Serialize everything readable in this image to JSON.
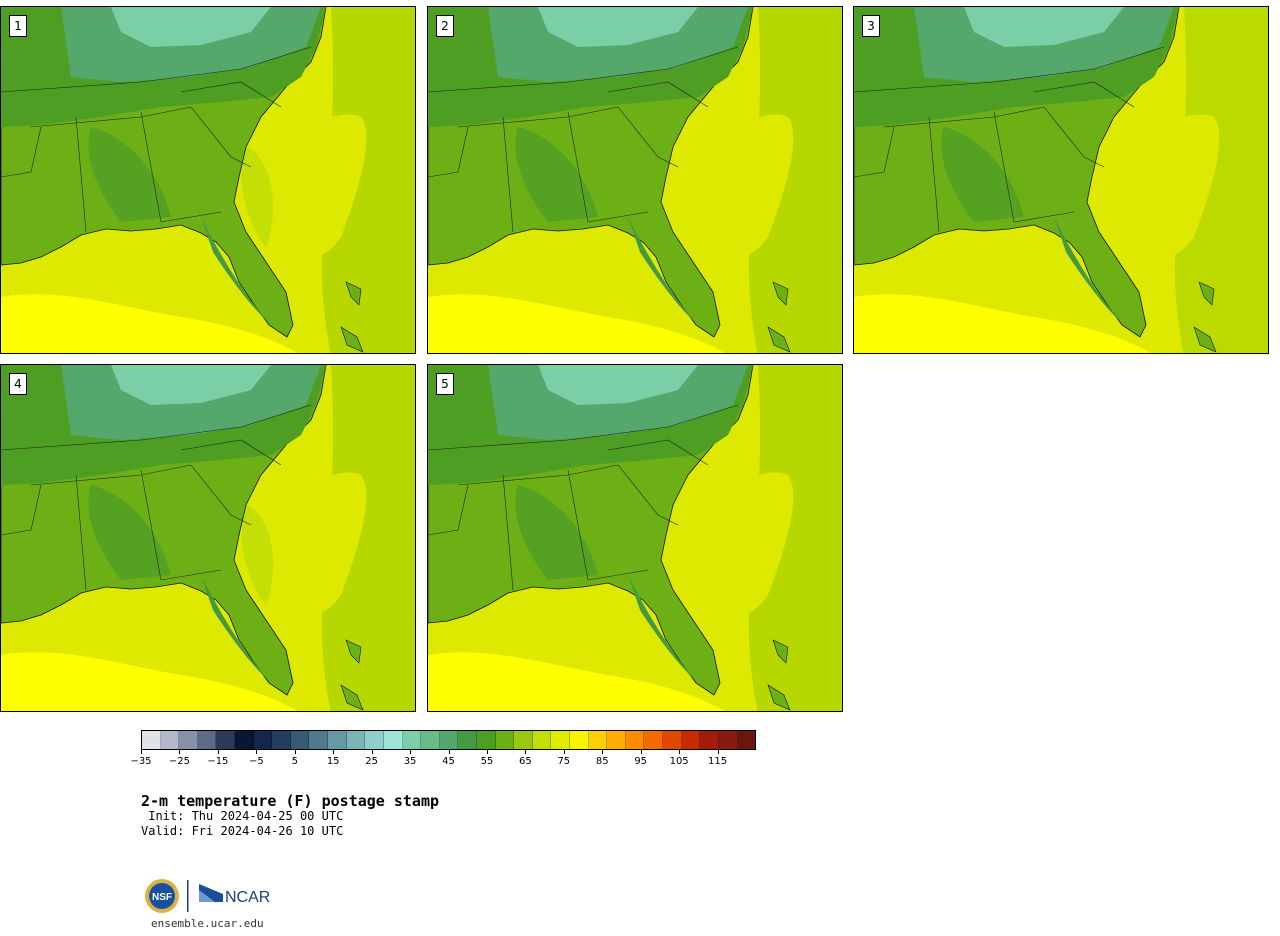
{
  "panels": [
    {
      "label": "1",
      "variant": 0
    },
    {
      "label": "2",
      "variant": 1
    },
    {
      "label": "3",
      "variant": 2
    },
    {
      "label": "4",
      "variant": 0
    },
    {
      "label": "5",
      "variant": 1
    }
  ],
  "colorbar": {
    "colors": [
      "#dfe3e8",
      "#b3b8c8",
      "#8690a6",
      "#5f6b86",
      "#2e3a5a",
      "#0b1632",
      "#14264a",
      "#213e5e",
      "#355a73",
      "#4f7b8c",
      "#6799a3",
      "#7db4b6",
      "#90d0cb",
      "#9fe6d8",
      "#7bcfa6",
      "#67bb86",
      "#55a86b",
      "#439a43",
      "#4f9e24",
      "#6db016",
      "#99c90f",
      "#c4df05",
      "#e0ed00",
      "#fbf400",
      "#ffd000",
      "#ffae00",
      "#ff8c00",
      "#f46a00",
      "#e04a00",
      "#c82c00",
      "#a41c0c",
      "#881a10",
      "#6a180d"
    ],
    "tick_labels": [
      "−35",
      "−25",
      "−15",
      "−5",
      "5",
      "15",
      "25",
      "35",
      "45",
      "55",
      "65",
      "75",
      "85",
      "95",
      "105",
      "115"
    ],
    "min": -35,
    "max": 125
  },
  "title": "2-m temperature (F) postage stamp",
  "init": " Init: Thu 2024-04-25 00 UTC",
  "valid": "Valid: Fri 2024-04-26 10 UTC",
  "site": "ensemble.ucar.edu",
  "logos": {
    "nsf": "NSF",
    "ncar": "NCAR"
  }
}
